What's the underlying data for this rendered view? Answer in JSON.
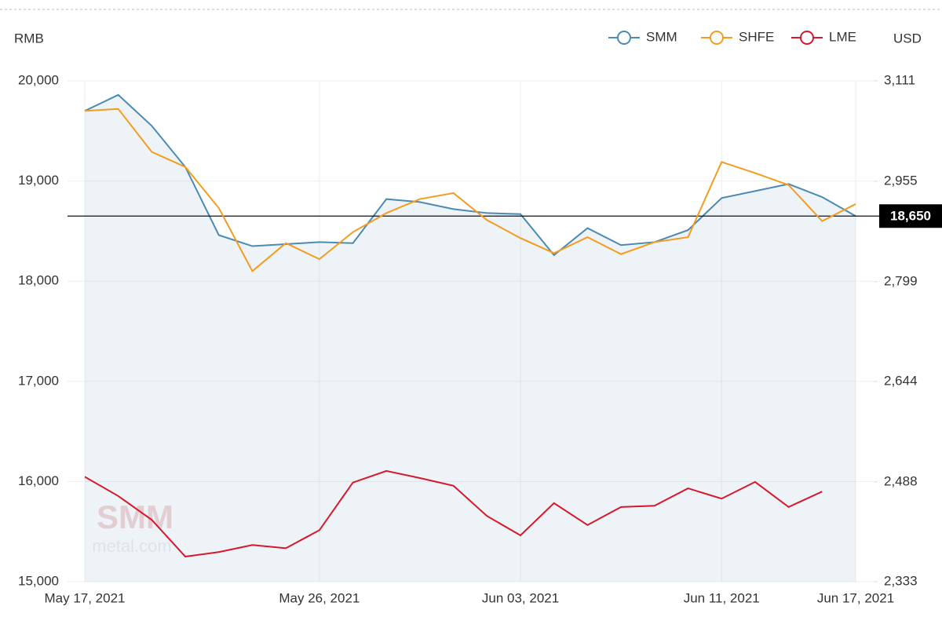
{
  "chart_data": {
    "type": "line",
    "y_axis_label": "RMB",
    "y2_axis_label": "USD",
    "watermark": "SMM",
    "watermark_sub": "metal.com",
    "categories": [
      "May 17, 2021",
      null,
      null,
      null,
      null,
      null,
      null,
      "May 26, 2021",
      null,
      null,
      null,
      null,
      null,
      "Jun 03, 2021",
      null,
      null,
      null,
      null,
      null,
      "Jun 11, 2021",
      null,
      null,
      null,
      "Jun 17, 2021"
    ],
    "ylim": [
      15000,
      20000
    ],
    "yticks": [
      {
        "value": 15000,
        "label": "15,000"
      },
      {
        "value": 16000,
        "label": "16,000"
      },
      {
        "value": 17000,
        "label": "17,000"
      },
      {
        "value": 18000,
        "label": "18,000"
      },
      {
        "value": 19000,
        "label": "19,000"
      },
      {
        "value": 20000,
        "label": "20,000"
      }
    ],
    "y2lim": [
      2333,
      3111
    ],
    "y2ticks": [
      {
        "value": 2333,
        "label": "2,333"
      },
      {
        "value": 2488,
        "label": "2,488"
      },
      {
        "value": 2644,
        "label": "2,644"
      },
      {
        "value": 2799,
        "label": "2,799"
      },
      {
        "value": 2955,
        "label": "2,955"
      },
      {
        "value": 3111,
        "label": "3,111"
      }
    ],
    "grid": true,
    "legend": "top-right",
    "series": [
      {
        "name": "SMM",
        "color": "#4a8ab3",
        "area": true,
        "values": [
          19700,
          19860,
          19550,
          19140,
          18460,
          18350,
          18370,
          18390,
          18380,
          18820,
          18790,
          18720,
          18680,
          18670,
          18260,
          18530,
          18360,
          18390,
          18510,
          18830,
          18900,
          18970,
          18840,
          18650
        ],
        "value_labels": [
          null,
          null,
          null,
          null,
          null,
          null,
          null,
          null,
          null,
          null,
          null,
          null,
          null,
          null,
          null,
          null,
          null,
          null,
          null,
          null,
          null,
          null,
          null,
          "18,650"
        ]
      },
      {
        "name": "SHFE",
        "color": "#f39c1e",
        "values": [
          19700,
          19720,
          19290,
          19140,
          18730,
          18100,
          18380,
          18220,
          18490,
          18680,
          18820,
          18880,
          18610,
          18430,
          18280,
          18440,
          18270,
          18390,
          18440,
          19190,
          19080,
          18960,
          18600,
          18770
        ]
      },
      {
        "name": "LME",
        "color": "#d7182a",
        "axis": "y2",
        "values": [
          2496,
          2466,
          2429,
          2372,
          2379,
          2390,
          2385,
          2413,
          2487,
          2505,
          2494,
          2482,
          2435,
          2405,
          2455,
          2421,
          2449,
          2451,
          2478,
          2462,
          2488,
          2449,
          2473,
          null
        ]
      }
    ]
  }
}
